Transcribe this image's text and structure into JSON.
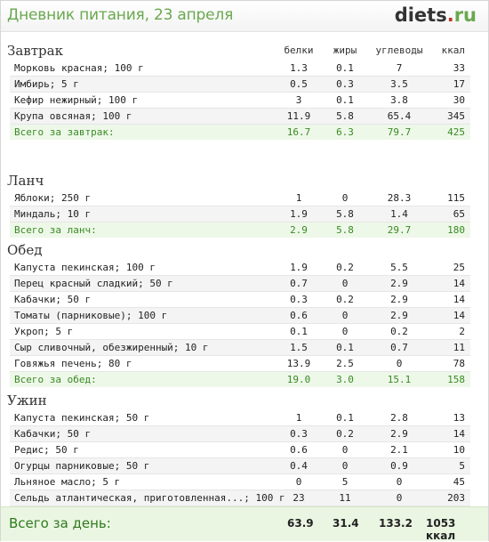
{
  "header": {
    "title": "Дневник питания, 23 апреля",
    "logo_main": "diets",
    "logo_dot": ".",
    "logo_tld": "ru"
  },
  "columns": {
    "protein": "белки",
    "fat": "жиры",
    "carbs": "углеводы",
    "kcal": "ккал"
  },
  "meals": [
    {
      "title": "Завтрак",
      "items": [
        {
          "name": "Морковь красная; 100 г",
          "p": "1.3",
          "f": "0.1",
          "c": "7",
          "k": "33"
        },
        {
          "name": "Имбирь; 5 г",
          "p": "0.5",
          "f": "0.3",
          "c": "3.5",
          "k": "17"
        },
        {
          "name": "Кефир нежирный; 100 г",
          "p": "3",
          "f": "0.1",
          "c": "3.8",
          "k": "30"
        },
        {
          "name": "Крупа овсяная; 100 г",
          "p": "11.9",
          "f": "5.8",
          "c": "65.4",
          "k": "345"
        }
      ],
      "total": {
        "name": "Всего за завтрак:",
        "p": "16.7",
        "f": "6.3",
        "c": "79.7",
        "k": "425"
      }
    },
    {
      "title": "Ланч",
      "items": [
        {
          "name": "Яблоки; 250 г",
          "p": "1",
          "f": "0",
          "c": "28.3",
          "k": "115"
        },
        {
          "name": "Миндаль; 10 г",
          "p": "1.9",
          "f": "5.8",
          "c": "1.4",
          "k": "65"
        }
      ],
      "total": {
        "name": "Всего за ланч:",
        "p": "2.9",
        "f": "5.8",
        "c": "29.7",
        "k": "180"
      }
    },
    {
      "title": "Обед",
      "items": [
        {
          "name": "Капуста пекинская; 100 г",
          "p": "1.9",
          "f": "0.2",
          "c": "5.5",
          "k": "25"
        },
        {
          "name": "Перец красный сладкий; 50 г",
          "p": "0.7",
          "f": "0",
          "c": "2.9",
          "k": "14"
        },
        {
          "name": "Кабачки; 50 г",
          "p": "0.3",
          "f": "0.2",
          "c": "2.9",
          "k": "14"
        },
        {
          "name": "Томаты (парниковые); 100 г",
          "p": "0.6",
          "f": "0",
          "c": "2.9",
          "k": "14"
        },
        {
          "name": "Укроп; 5 г",
          "p": "0.1",
          "f": "0",
          "c": "0.2",
          "k": "2"
        },
        {
          "name": "Сыр сливочный, обезжиренный; 10 г",
          "p": "1.5",
          "f": "0.1",
          "c": "0.7",
          "k": "11"
        },
        {
          "name": "Говяжья печень; 80 г",
          "p": "13.9",
          "f": "2.5",
          "c": "0",
          "k": "78"
        }
      ],
      "total": {
        "name": "Всего за обед:",
        "p": "19.0",
        "f": "3.0",
        "c": "15.1",
        "k": "158"
      }
    },
    {
      "title": "Ужин",
      "items": [
        {
          "name": "Капуста пекинская; 50 г",
          "p": "1",
          "f": "0.1",
          "c": "2.8",
          "k": "13"
        },
        {
          "name": "Кабачки; 50 г",
          "p": "0.3",
          "f": "0.2",
          "c": "2.9",
          "k": "14"
        },
        {
          "name": "Редис; 50 г",
          "p": "0.6",
          "f": "0",
          "c": "2.1",
          "k": "10"
        },
        {
          "name": "Огурцы парниковые; 50 г",
          "p": "0.4",
          "f": "0",
          "c": "0.9",
          "k": "5"
        },
        {
          "name": "Льняное масло; 5 г",
          "p": "0",
          "f": "5",
          "c": "0",
          "k": "45"
        },
        {
          "name": "Сельдь атлантическая, приготовленная...; 100 г",
          "p": "23",
          "f": "11",
          "c": "0",
          "k": "203"
        }
      ],
      "total": {
        "name": "Всего за ужин:",
        "p": "25.3",
        "f": "16.3",
        "c": "8.7",
        "k": "290"
      }
    }
  ],
  "day_total": {
    "label": "Всего за день:",
    "p": "63.9",
    "f": "31.4",
    "c": "133.2",
    "k": "1053 ккал"
  },
  "colors": {
    "title_green": "#6aa84f",
    "total_green": "#3a8a24",
    "total_bg": "#eef8e9",
    "logo_dot": "#c0392b"
  }
}
